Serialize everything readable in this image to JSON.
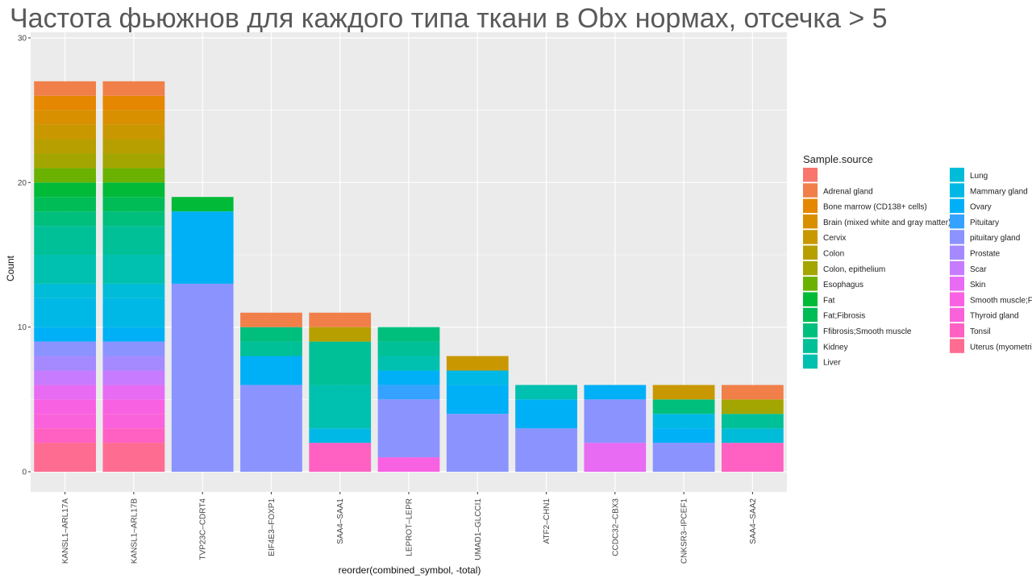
{
  "title": "Частота фьюжнов для каждого типа ткани в Obx нормах, отсечка > 5",
  "chart_data": {
    "type": "bar",
    "stacked": true,
    "title": "Частота фьюжнов для каждого типа ткани в Obx нормах, отсечка > 5",
    "xlabel": "reorder(combined_symbol, -total)",
    "ylabel": "Count",
    "ylim": [
      0,
      30
    ],
    "yticks": [
      0,
      10,
      20,
      30
    ],
    "grid": true,
    "legend_title": "Sample.source",
    "legend_position": "right",
    "categories": [
      "KANSL1–ARL17A",
      "KANSL1–ARL17B",
      "TVP23C–CDRT4",
      "EIF4E3–FOXP1",
      "SAA4–SAA1",
      "LEPROT–LEPR",
      "UMAD1–GLCCI1",
      "ATF2–CHN1",
      "CCDC32–CBX3",
      "CNKSR3–IPCEF1",
      "SAA4–SAA2"
    ],
    "series": [
      {
        "name": "",
        "color": "#F8766D",
        "values": [
          0,
          0,
          0,
          0,
          0,
          0,
          0,
          0,
          0,
          0,
          0
        ]
      },
      {
        "name": "Adrenal gland",
        "color": "#F07F4A",
        "values": [
          1,
          1,
          0,
          1,
          1,
          0,
          0,
          0,
          0,
          0,
          1
        ]
      },
      {
        "name": "Bone marrow (CD138+ cells)",
        "color": "#E58700",
        "values": [
          1,
          1,
          0,
          0,
          0,
          0,
          0,
          0,
          0,
          0,
          0
        ]
      },
      {
        "name": "Brain (mixed white and gray matter)",
        "color": "#D89000",
        "values": [
          1,
          1,
          0,
          0,
          0,
          0,
          0,
          0,
          0,
          0,
          0
        ]
      },
      {
        "name": "Cervix",
        "color": "#C99800",
        "values": [
          1,
          1,
          0,
          0,
          0,
          0,
          1,
          0,
          0,
          1,
          0
        ]
      },
      {
        "name": "Colon",
        "color": "#B79F00",
        "values": [
          1,
          1,
          0,
          0,
          1,
          0,
          0,
          0,
          0,
          0,
          0
        ]
      },
      {
        "name": "Colon, epithelium",
        "color": "#A3A500",
        "values": [
          1,
          1,
          0,
          0,
          0,
          0,
          0,
          0,
          0,
          0,
          1
        ]
      },
      {
        "name": "Esophagus",
        "color": "#6BB100",
        "values": [
          1,
          1,
          0,
          0,
          0,
          0,
          0,
          0,
          0,
          0,
          0
        ]
      },
      {
        "name": "Fat",
        "color": "#00BA38",
        "values": [
          1,
          1,
          1,
          0,
          0,
          0,
          0,
          0,
          0,
          0,
          0
        ]
      },
      {
        "name": "Fat;Fibrosis",
        "color": "#00BC56",
        "values": [
          1,
          1,
          0,
          0,
          0,
          0,
          0,
          0,
          0,
          0,
          0
        ]
      },
      {
        "name": "Ffibrosis;Smooth muscle",
        "color": "#00BF7D",
        "values": [
          1,
          1,
          0,
          1,
          0,
          1,
          0,
          0,
          0,
          1,
          0
        ]
      },
      {
        "name": "Kidney",
        "color": "#00C097",
        "values": [
          2,
          2,
          0,
          1,
          3,
          1,
          0,
          0,
          0,
          0,
          1
        ]
      },
      {
        "name": "Liver",
        "color": "#00C0AF",
        "values": [
          2,
          2,
          0,
          0,
          3,
          1,
          0,
          1,
          0,
          0,
          0
        ]
      },
      {
        "name": "Lung",
        "color": "#00BCD8",
        "values": [
          1,
          1,
          0,
          0,
          0,
          0,
          0,
          0,
          0,
          0,
          1
        ]
      },
      {
        "name": "Mammary gland",
        "color": "#00B8E5",
        "values": [
          2,
          2,
          0,
          0,
          1,
          0,
          1,
          0,
          0,
          1,
          0
        ]
      },
      {
        "name": "Ovary",
        "color": "#00B0F6",
        "values": [
          1,
          1,
          5,
          2,
          0,
          1,
          2,
          2,
          1,
          1,
          0
        ]
      },
      {
        "name": "Pituitary",
        "color": "#35A2FF",
        "values": [
          0,
          0,
          0,
          0,
          0,
          1,
          0,
          0,
          0,
          0,
          0
        ]
      },
      {
        "name": "pituitary gland",
        "color": "#8B93FF",
        "values": [
          1,
          1,
          13,
          6,
          0,
          4,
          4,
          3,
          3,
          2,
          0
        ]
      },
      {
        "name": "Prostate",
        "color": "#A58AFF",
        "values": [
          1,
          1,
          0,
          0,
          0,
          0,
          0,
          0,
          0,
          0,
          0
        ]
      },
      {
        "name": "Scar",
        "color": "#C77CFF",
        "values": [
          1,
          1,
          0,
          0,
          0,
          0,
          0,
          0,
          0,
          0,
          0
        ]
      },
      {
        "name": "Skin",
        "color": "#E76BF3",
        "values": [
          1,
          1,
          0,
          0,
          0,
          0,
          0,
          0,
          2,
          0,
          0
        ]
      },
      {
        "name": "Smooth muscle;Fat",
        "color": "#F862E2",
        "values": [
          1,
          1,
          0,
          0,
          0,
          1,
          0,
          0,
          0,
          0,
          0
        ]
      },
      {
        "name": "Thyroid gland",
        "color": "#FA62DB",
        "values": [
          1,
          1,
          0,
          0,
          0,
          0,
          0,
          0,
          0,
          0,
          0
        ]
      },
      {
        "name": "Tonsil",
        "color": "#FF61C3",
        "values": [
          1,
          1,
          0,
          0,
          2,
          0,
          0,
          0,
          0,
          0,
          2
        ]
      },
      {
        "name": "Uterus (myometrium)",
        "color": "#FF6C91",
        "values": [
          2,
          2,
          0,
          0,
          0,
          0,
          0,
          0,
          0,
          0,
          0
        ]
      }
    ],
    "legend_labels": [
      "",
      "Adrenal gland",
      "Bone marrow (CD138+ cells)",
      "Brain (mixed white and gray matter)",
      "Cervix",
      "Colon",
      "Colon, epithelium",
      "Esophagus",
      "Fat",
      "Fat;Fibrosis",
      "Ffibrosis;Smooth muscle",
      "Kidney",
      "Liver",
      "Lung",
      "Mammary gland",
      "Ovary",
      "Pituitary",
      "pituitary gland",
      "Prostate",
      "Scar",
      "Skin",
      "Smooth muscle;Fa",
      "Thyroid gland",
      "Tonsil",
      "Uterus (myometriu"
    ]
  }
}
